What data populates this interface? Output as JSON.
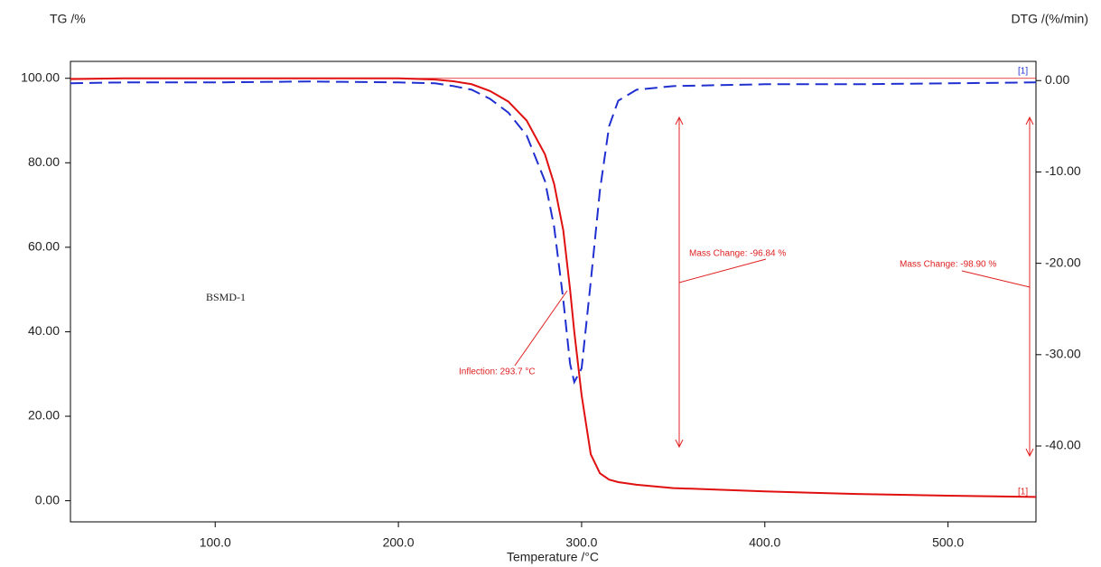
{
  "chart_data": {
    "type": "line",
    "y_label": "TG /%",
    "y2_label": "DTG /(%/min)",
    "x_label": "Temperature /°C",
    "x": [
      21,
      50,
      100,
      150,
      200,
      220,
      230,
      240,
      250,
      260,
      270,
      280,
      285,
      290,
      293.7,
      296,
      300,
      305,
      310,
      315,
      320,
      330,
      350,
      400,
      450,
      500,
      548
    ],
    "series": [
      {
        "name": "TG",
        "color": "#e01010",
        "dash": false,
        "values": [
          99.8,
          100,
          100,
          100,
          100,
          99.7,
          99.3,
          98.6,
          97,
          94.5,
          90,
          82,
          75,
          64,
          50,
          40,
          25,
          11,
          6.5,
          5,
          4.4,
          3.8,
          3,
          2.2,
          1.6,
          1.2,
          0.9
        ]
      },
      {
        "name": "DTG",
        "color": "#2030d0",
        "dash": true,
        "axis": "y2",
        "values": [
          -0.3,
          -0.2,
          -0.2,
          -0.1,
          -0.2,
          -0.3,
          -0.6,
          -1,
          -2,
          -3.5,
          -6,
          -11,
          -16,
          -24,
          -31,
          -33,
          -31.5,
          -22,
          -12,
          -5,
          -2.2,
          -1,
          -0.6,
          -0.4,
          -0.4,
          -0.3,
          -0.2
        ]
      }
    ],
    "ref_line": 100,
    "xlim": [
      21,
      548
    ],
    "xticks": [
      {
        "value": 100,
        "label": "100.0"
      },
      {
        "value": 200,
        "label": "200.0"
      },
      {
        "value": 300,
        "label": "300.0"
      },
      {
        "value": 400,
        "label": "400.0"
      },
      {
        "value": 500,
        "label": "500.0"
      }
    ],
    "ylim": [
      -5,
      104
    ],
    "yticks": [
      {
        "value": 0,
        "label": "0.00"
      },
      {
        "value": 20,
        "label": "20.00"
      },
      {
        "value": 40,
        "label": "40.00"
      },
      {
        "value": 60,
        "label": "60.00"
      },
      {
        "value": 80,
        "label": "80.00"
      },
      {
        "value": 100,
        "label": "100.00"
      }
    ],
    "y2lim": [
      -48.3,
      2.1
    ],
    "y2ticks": [
      {
        "value": 0,
        "label": "0.00"
      },
      {
        "value": -10,
        "label": "-10.00"
      },
      {
        "value": -20,
        "label": "-20.00"
      },
      {
        "value": -30,
        "label": "-30.00"
      },
      {
        "value": -40,
        "label": "-40.00"
      }
    ],
    "annotations": [
      "BSMD-1",
      "Inflection: 293.7 °C",
      "Mass Change: -96.84 %",
      "Mass Change: -98.90 %",
      "[1]",
      "[1]"
    ]
  }
}
